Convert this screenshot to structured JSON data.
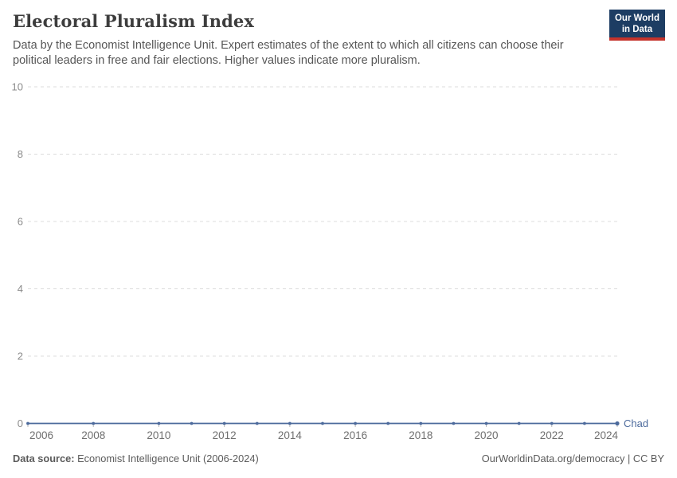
{
  "colors": {
    "accent_blue": "#4C6A9C",
    "grid": "#dcdcdc",
    "ytick_label": "#8c8c8c",
    "xtick_label": "#6f6f6f",
    "xtick_mark": "#b9b9b9",
    "logo_bg": "#1d3d63",
    "logo_stripe": "#c5332b",
    "title": "#3d3d3d",
    "subtitle": "#565656",
    "footer": "#5b5b5b"
  },
  "header": {
    "title": "Electoral Pluralism Index",
    "subtitle": "Data by the Economist Intelligence Unit. Expert estimates of the extent to which all citizens can choose their political leaders in free and fair elections. Higher values indicate more pluralism.",
    "logo": {
      "line1": "Our World",
      "line2": "in Data"
    }
  },
  "chart_data": {
    "type": "line",
    "title": "Electoral Pluralism Index",
    "xlabel": "",
    "ylabel": "",
    "xlim": [
      2006,
      2024
    ],
    "ylim": [
      0,
      10
    ],
    "yticks": [
      0,
      2,
      4,
      6,
      8,
      10
    ],
    "xticks": [
      2006,
      2008,
      2010,
      2012,
      2014,
      2016,
      2018,
      2020,
      2022,
      2024
    ],
    "grid": "horizontal-dashed",
    "legend": "end-of-line-label",
    "series": [
      {
        "name": "Chad",
        "color": "#4C6A9C",
        "points": [
          {
            "x": 2006,
            "y": 0
          },
          {
            "x": 2008,
            "y": 0
          },
          {
            "x": 2010,
            "y": 0
          },
          {
            "x": 2011,
            "y": 0
          },
          {
            "x": 2012,
            "y": 0
          },
          {
            "x": 2013,
            "y": 0
          },
          {
            "x": 2014,
            "y": 0
          },
          {
            "x": 2015,
            "y": 0
          },
          {
            "x": 2016,
            "y": 0
          },
          {
            "x": 2017,
            "y": 0
          },
          {
            "x": 2018,
            "y": 0
          },
          {
            "x": 2019,
            "y": 0
          },
          {
            "x": 2020,
            "y": 0
          },
          {
            "x": 2021,
            "y": 0
          },
          {
            "x": 2022,
            "y": 0
          },
          {
            "x": 2023,
            "y": 0
          },
          {
            "x": 2024,
            "y": 0
          }
        ]
      }
    ]
  },
  "footer": {
    "source_label": "Data source:",
    "source_text": "Economist Intelligence Unit (2006-2024)",
    "credit": "OurWorldinData.org/democracy | CC BY"
  }
}
